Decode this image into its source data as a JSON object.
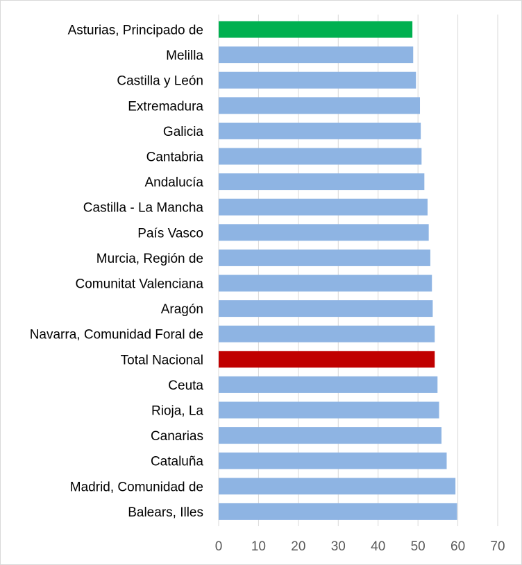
{
  "chart_data": {
    "type": "bar",
    "orientation": "horizontal",
    "title": "",
    "xlabel": "",
    "ylabel": "",
    "xlim": [
      0,
      70
    ],
    "x_ticks": [
      0,
      10,
      20,
      30,
      40,
      50,
      60,
      70
    ],
    "grid": "vertical",
    "legend": "none",
    "categories": [
      "Asturias, Principado de",
      "Melilla",
      "Castilla y León",
      "Extremadura",
      "Galicia",
      "Cantabria",
      "Andalucía",
      "Castilla - La Mancha",
      "País Vasco",
      "Murcia, Región de",
      "Comunitat Valenciana",
      "Aragón",
      "Navarra, Comunidad Foral de",
      "Total Nacional",
      "Ceuta",
      "Rioja, La",
      "Canarias",
      "Cataluña",
      "Madrid, Comunidad de",
      "Balears, Illes"
    ],
    "values": [
      48.6,
      48.8,
      49.5,
      50.5,
      50.7,
      50.9,
      51.6,
      52.4,
      52.7,
      53.1,
      53.5,
      53.7,
      54.2,
      54.2,
      54.9,
      55.3,
      55.9,
      57.2,
      59.4,
      59.8
    ],
    "colors": {
      "default": "#8eb4e3",
      "highlight_first": "#00b050",
      "highlight_total": "#c00000"
    },
    "highlight": {
      "Asturias, Principado de": "#00b050",
      "Total Nacional": "#c00000"
    }
  }
}
